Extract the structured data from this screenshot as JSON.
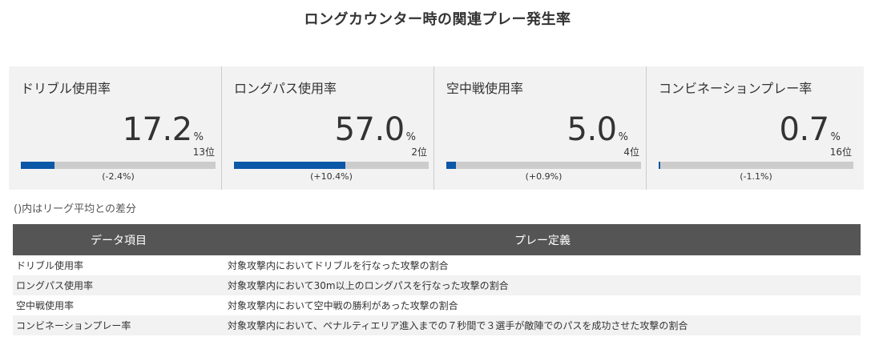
{
  "title": "ロングカウンター時の関連プレー発生率",
  "cards": [
    {
      "label": "ドリブル使用率",
      "value": "17.2",
      "unit": "%",
      "rank": "13位",
      "diff": "(-2.4%)",
      "fill_percent": 17.2
    },
    {
      "label": "ロングパス使用率",
      "value": "57.0",
      "unit": "%",
      "rank": "2位",
      "diff": "(+10.4%)",
      "fill_percent": 57.0
    },
    {
      "label": "空中戦使用率",
      "value": "5.0",
      "unit": "%",
      "rank": "4位",
      "diff": "(+0.9%)",
      "fill_percent": 5.0
    },
    {
      "label": "コンビネーションプレー率",
      "value": "0.7",
      "unit": "%",
      "rank": "16位",
      "diff": "(-1.1%)",
      "fill_percent": 0.7
    }
  ],
  "note": "()内はリーグ平均との差分",
  "table": {
    "headers": [
      "データ項目",
      "プレー定義"
    ],
    "rows": [
      [
        "ドリブル使用率",
        "対象攻撃内においてドリブルを行なった攻撃の割合"
      ],
      [
        "ロングパス使用率",
        "対象攻撃内において30m以上のロングパスを行なった攻撃の割合"
      ],
      [
        "空中戦使用率",
        "対象攻撃内において空中戦の勝利があった攻撃の割合"
      ],
      [
        "コンビネーションプレー率",
        "対象攻撃内において、ペナルティエリア進入までの７秒間で３選手が敵陣でのパスを成功させた攻撃の割合"
      ]
    ]
  },
  "colors": {
    "bar_fill": "#0b57a8",
    "bar_track": "#cccccc",
    "card_bg": "#f2f2f2",
    "table_header_bg": "#555555"
  }
}
